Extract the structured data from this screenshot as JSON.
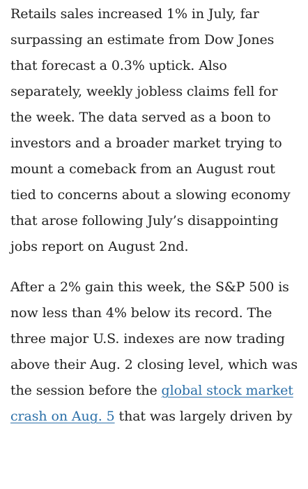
{
  "article": {
    "paragraph_1": "Retails sales increased 1% in July, far surpassing an estimate from Dow Jones that forecast a 0.3% uptick. Also separately, weekly jobless claims fell for the week. The data served as a boon to investors and a broader market trying to mount a comeback from an August rout tied to concerns about a slowing economy that arose following July’s disappointing jobs report on August 2nd.",
    "paragraph_2": {
      "text_before_link": "After a 2% gain this week, the S&P 500 is now less than 4% below its record. The three major U.S. indexes are now trading above their Aug. 2 closing level, which was the session before the ",
      "link_text": "global stock market crash on Aug. 5",
      "text_after_link": " that was largely driven by"
    }
  },
  "colors": {
    "text": "#1f1f1f",
    "link": "#2a6fa8",
    "background": "#ffffff"
  }
}
